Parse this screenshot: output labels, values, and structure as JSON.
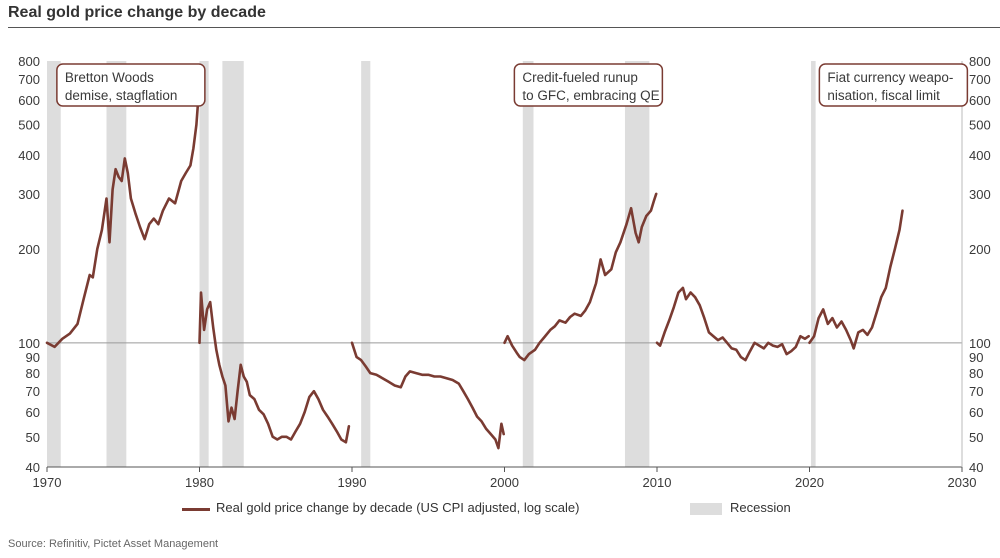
{
  "title": "Real gold price change by decade",
  "source": "Source: Refinitiv, Pictet Asset Management",
  "legend": {
    "line": "Real gold price change by decade (US CPI adjusted, log scale)",
    "recession": "Recession"
  },
  "colors": {
    "line": "#7a3b32",
    "recession": "#dddddd",
    "box_border": "#7a3b32",
    "text": "#3a3a3a"
  },
  "chart_data": {
    "type": "line",
    "title": "Real gold price change by decade",
    "xlabel": "",
    "ylabel": "",
    "yscale": "log",
    "xlim": [
      1970,
      2030
    ],
    "ylim": [
      40,
      800
    ],
    "x_ticks": [
      "1970",
      "1980",
      "1990",
      "2000",
      "2010",
      "2020",
      "2030"
    ],
    "y_ticks": [
      40,
      50,
      60,
      70,
      80,
      90,
      100,
      200,
      300,
      400,
      500,
      600,
      700,
      800
    ],
    "y_tick_labels": [
      "40",
      "50",
      "60",
      "70",
      "80",
      "90",
      "100",
      "200",
      "300",
      "400",
      "500",
      "600",
      "700",
      "800"
    ],
    "reference_line": 100,
    "recessions": [
      [
        1970.0,
        1970.9
      ],
      [
        1973.9,
        1975.2
      ],
      [
        1980.0,
        1980.6
      ],
      [
        1981.5,
        1982.9
      ],
      [
        1990.6,
        1991.2
      ],
      [
        2001.2,
        2001.9
      ],
      [
        2007.9,
        2009.5
      ],
      [
        2020.1,
        2020.4
      ]
    ],
    "annotations": [
      {
        "lines": [
          "Bretton Woods",
          "demise, stagflation"
        ],
        "x": 1975.5
      },
      {
        "lines": [
          "Credit-fueled runup",
          "to GFC, embracing QE"
        ],
        "x": 2005.5
      },
      {
        "lines": [
          "Fiat currency weapo-",
          "nisation, fiscal limit"
        ],
        "x": 2025.5
      }
    ],
    "series": [
      {
        "name": "1970s",
        "x": [
          1970.0,
          1970.5,
          1971.0,
          1971.5,
          1972.0,
          1972.4,
          1972.8,
          1973.0,
          1973.3,
          1973.6,
          1973.9,
          1974.1,
          1974.3,
          1974.5,
          1974.7,
          1974.9,
          1975.1,
          1975.3,
          1975.5,
          1975.8,
          1976.1,
          1976.4,
          1976.7,
          1977.0,
          1977.3,
          1977.6,
          1978.0,
          1978.4,
          1978.8,
          1979.1,
          1979.4,
          1979.6,
          1979.8,
          1979.95
        ],
        "values": [
          100,
          97,
          103,
          107,
          115,
          138,
          165,
          162,
          200,
          230,
          290,
          210,
          310,
          360,
          340,
          330,
          390,
          350,
          290,
          260,
          235,
          215,
          240,
          250,
          240,
          265,
          290,
          280,
          330,
          350,
          370,
          420,
          500,
          630
        ]
      },
      {
        "name": "1980s",
        "x": [
          1980.0,
          1980.1,
          1980.3,
          1980.5,
          1980.7,
          1980.9,
          1981.1,
          1981.3,
          1981.5,
          1981.7,
          1981.9,
          1982.1,
          1982.3,
          1982.5,
          1982.7,
          1982.9,
          1983.1,
          1983.3,
          1983.6,
          1983.9,
          1984.2,
          1984.5,
          1984.8,
          1985.1,
          1985.4,
          1985.7,
          1986.0,
          1986.3,
          1986.6,
          1986.9,
          1987.2,
          1987.5,
          1987.8,
          1988.1,
          1988.4,
          1988.7,
          1989.0,
          1989.3,
          1989.6,
          1989.8
        ],
        "values": [
          100,
          145,
          110,
          128,
          135,
          112,
          95,
          85,
          78,
          73,
          56,
          62,
          57,
          70,
          85,
          78,
          75,
          68,
          66,
          61,
          59,
          55,
          50,
          49,
          50,
          50,
          49,
          52,
          55,
          60,
          67,
          70,
          66,
          61,
          58,
          55,
          52,
          49,
          48,
          54
        ]
      },
      {
        "name": "1990s",
        "x": [
          1990.0,
          1990.3,
          1990.6,
          1990.9,
          1991.2,
          1991.6,
          1992.0,
          1992.4,
          1992.8,
          1993.2,
          1993.5,
          1993.8,
          1994.2,
          1994.6,
          1995.0,
          1995.4,
          1995.8,
          1996.2,
          1996.6,
          1997.0,
          1997.3,
          1997.6,
          1997.9,
          1998.2,
          1998.5,
          1998.8,
          1999.1,
          1999.4,
          1999.6,
          1999.8,
          1999.95
        ],
        "values": [
          100,
          90,
          88,
          84,
          80,
          79,
          77,
          75,
          73,
          72,
          78,
          81,
          80,
          79,
          79,
          78,
          78,
          77,
          76,
          74,
          70,
          66,
          62,
          58,
          56,
          53,
          51,
          49,
          46,
          55,
          51
        ]
      },
      {
        "name": "2000s",
        "x": [
          2000.0,
          2000.2,
          2000.5,
          2000.8,
          2001.0,
          2001.3,
          2001.6,
          2002.0,
          2002.3,
          2002.6,
          2003.0,
          2003.3,
          2003.6,
          2004.0,
          2004.3,
          2004.6,
          2005.0,
          2005.3,
          2005.6,
          2006.0,
          2006.3,
          2006.6,
          2007.0,
          2007.3,
          2007.6,
          2008.0,
          2008.3,
          2008.6,
          2008.8,
          2009.0,
          2009.3,
          2009.6,
          2009.8,
          2009.95
        ],
        "values": [
          100,
          105,
          98,
          93,
          90,
          88,
          92,
          95,
          100,
          104,
          110,
          113,
          118,
          116,
          121,
          124,
          122,
          127,
          135,
          155,
          185,
          165,
          172,
          195,
          210,
          240,
          270,
          225,
          210,
          235,
          255,
          265,
          285,
          300
        ]
      },
      {
        "name": "2010s",
        "x": [
          2010.0,
          2010.2,
          2010.5,
          2010.8,
          2011.1,
          2011.4,
          2011.7,
          2011.9,
          2012.2,
          2012.5,
          2012.8,
          2013.1,
          2013.4,
          2013.7,
          2014.0,
          2014.3,
          2014.6,
          2014.9,
          2015.2,
          2015.5,
          2015.8,
          2016.1,
          2016.4,
          2016.7,
          2017.0,
          2017.3,
          2017.6,
          2017.9,
          2018.2,
          2018.5,
          2018.8,
          2019.1,
          2019.4,
          2019.7,
          2019.95
        ],
        "values": [
          100,
          98,
          108,
          118,
          130,
          145,
          150,
          138,
          145,
          140,
          132,
          120,
          108,
          105,
          102,
          104,
          100,
          96,
          95,
          90,
          88,
          94,
          100,
          98,
          96,
          100,
          98,
          97,
          99,
          92,
          94,
          97,
          105,
          103,
          105
        ]
      },
      {
        "name": "2020s",
        "x": [
          2020.0,
          2020.3,
          2020.6,
          2020.9,
          2021.2,
          2021.5,
          2021.8,
          2022.1,
          2022.4,
          2022.7,
          2022.9,
          2023.2,
          2023.5,
          2023.8,
          2024.1,
          2024.4,
          2024.7,
          2025.0,
          2025.3,
          2025.6,
          2025.9,
          2026.1
        ],
        "values": [
          100,
          105,
          120,
          128,
          115,
          120,
          112,
          117,
          110,
          102,
          96,
          108,
          110,
          106,
          112,
          125,
          140,
          150,
          175,
          200,
          230,
          265
        ]
      }
    ]
  }
}
